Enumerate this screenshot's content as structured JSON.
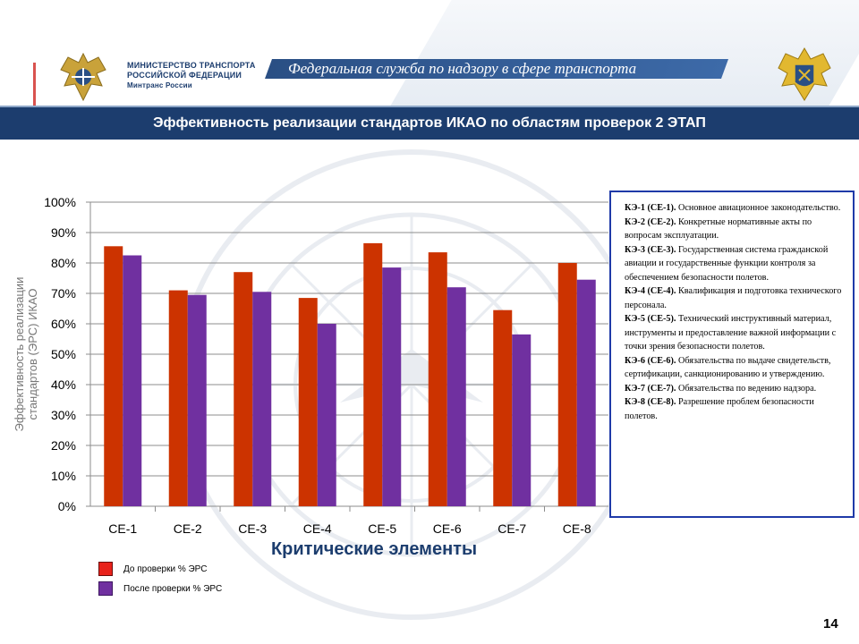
{
  "header": {
    "ministry_line1": "МИНИСТЕРСТВО ТРАНСПОРТА",
    "ministry_line2": "РОССИЙСКОЙ ФЕДЕРАЦИИ",
    "ministry_line3": "Минтранс России",
    "agency": "Федеральная служба по надзору в сфере транспорта"
  },
  "title": "Эффективность реализации стандартов ИКАО по областям проверок 2 ЭТАП",
  "definitions": [
    {
      "key": "КЭ-1 (CE-1).",
      "text": "Основное авиационное законодательство."
    },
    {
      "key": "КЭ-2 (CE-2).",
      "text": "Конкретные нормативные акты по вопросам эксплуатации."
    },
    {
      "key": "КЭ-3 (CE-3).",
      "text": "Государственная система гражданской авиации и государственные функции контроля за обеспечением безопасности полетов."
    },
    {
      "key": "КЭ-4 (CE-4).",
      "text": "Квалификация и подготовка технического персонала."
    },
    {
      "key": "КЭ-5 (CE-5).",
      "text": "Технический инструктивный материал, инструменты и предоставление важной информации с точки зрения безопасности полетов."
    },
    {
      "key": "КЭ-6 (CE-6).",
      "text": "Обязательства по выдаче свидетельств, сертификации, санкционированию и утверждению."
    },
    {
      "key": "КЭ-7 (CE-7).",
      "text": "Обязательства по ведению надзора."
    },
    {
      "key": "КЭ-8 (CE-8).",
      "text": "Разрешение проблем безопасности полетов."
    }
  ],
  "page_number": "14",
  "colors": {
    "before": "#cc3300",
    "after": "#7030a0",
    "navy": "#1c3d6e"
  },
  "chart_data": {
    "type": "bar",
    "categories": [
      "CE-1",
      "CE-2",
      "CE-3",
      "CE-4",
      "CE-5",
      "CE-6",
      "CE-7",
      "CE-8"
    ],
    "series": [
      {
        "name": "До проверки % ЭРС",
        "values": [
          85.5,
          71,
          77,
          68.5,
          86.5,
          83.5,
          64.5,
          80
        ]
      },
      {
        "name": "После проверки % ЭРС",
        "values": [
          82.5,
          69.5,
          70.5,
          60,
          78.5,
          72,
          56.5,
          74.5
        ]
      }
    ],
    "xlabel": "Критические элементы",
    "ylabel": "Эффективность реализации стандартов (ЭРС) ИКАО",
    "ylim": [
      0,
      100
    ],
    "yticks": [
      "0%",
      "10%",
      "20%",
      "30%",
      "40%",
      "50%",
      "60%",
      "70%",
      "80%",
      "90%",
      "100%"
    ],
    "grid": true
  }
}
